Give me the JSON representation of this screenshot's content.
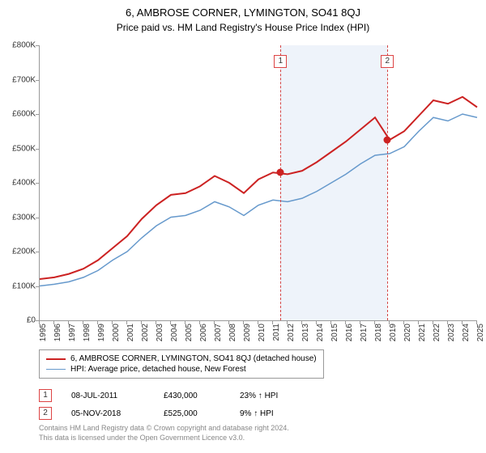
{
  "title": "6, AMBROSE CORNER, LYMINGTON, SO41 8QJ",
  "subtitle": "Price paid vs. HM Land Registry's House Price Index (HPI)",
  "chart": {
    "type": "line",
    "xlim": [
      1995,
      2025
    ],
    "ylim": [
      0,
      800000
    ],
    "ytick_step": 100000,
    "y_labels": [
      "£0",
      "£100K",
      "£200K",
      "£300K",
      "£400K",
      "£500K",
      "£600K",
      "£700K",
      "£800K"
    ],
    "x_ticks": [
      1995,
      1996,
      1997,
      1998,
      1999,
      2000,
      2001,
      2002,
      2003,
      2004,
      2005,
      2006,
      2007,
      2008,
      2009,
      2010,
      2011,
      2012,
      2013,
      2014,
      2015,
      2016,
      2017,
      2018,
      2019,
      2020,
      2021,
      2022,
      2023,
      2024,
      2025
    ],
    "background_color": "#ffffff",
    "series": [
      {
        "name": "6, AMBROSE CORNER, LYMINGTON, SO41 8QJ (detached house)",
        "color": "#cc2222",
        "line_width": 2,
        "years": [
          1995,
          1996,
          1997,
          1998,
          1999,
          2000,
          2001,
          2002,
          2003,
          2004,
          2005,
          2006,
          2007,
          2008,
          2009,
          2010,
          2011,
          2012,
          2013,
          2014,
          2015,
          2016,
          2017,
          2018,
          2019,
          2020,
          2021,
          2022,
          2023,
          2024,
          2025
        ],
        "values": [
          120000,
          125000,
          135000,
          150000,
          175000,
          210000,
          245000,
          295000,
          335000,
          365000,
          370000,
          390000,
          420000,
          400000,
          370000,
          410000,
          430000,
          425000,
          435000,
          460000,
          490000,
          520000,
          555000,
          590000,
          525000,
          550000,
          595000,
          640000,
          630000,
          650000,
          620000
        ]
      },
      {
        "name": "HPI: Average price, detached house, New Forest",
        "color": "#6699cc",
        "line_width": 1.5,
        "years": [
          1995,
          1996,
          1997,
          1998,
          1999,
          2000,
          2001,
          2002,
          2003,
          2004,
          2005,
          2006,
          2007,
          2008,
          2009,
          2010,
          2011,
          2012,
          2013,
          2014,
          2015,
          2016,
          2017,
          2018,
          2019,
          2020,
          2021,
          2022,
          2023,
          2024,
          2025
        ],
        "values": [
          100000,
          105000,
          112000,
          125000,
          145000,
          175000,
          200000,
          240000,
          275000,
          300000,
          305000,
          320000,
          345000,
          330000,
          305000,
          335000,
          350000,
          345000,
          355000,
          375000,
          400000,
          425000,
          455000,
          480000,
          485000,
          505000,
          550000,
          590000,
          580000,
          600000,
          590000
        ]
      }
    ],
    "shaded_region": {
      "start": 2011.52,
      "end": 2018.85,
      "color": "#eef3fa"
    },
    "vlines": [
      {
        "x": 2011.52,
        "label": "1",
        "color": "#d44444"
      },
      {
        "x": 2018.85,
        "label": "2",
        "color": "#d44444"
      }
    ],
    "sale_points": [
      {
        "x": 2011.52,
        "y": 430000,
        "color": "#cc2222"
      },
      {
        "x": 2018.85,
        "y": 525000,
        "color": "#cc2222"
      }
    ]
  },
  "legend": {
    "items": [
      {
        "label": "6, AMBROSE CORNER, LYMINGTON, SO41 8QJ (detached house)",
        "color": "#cc2222",
        "width": 2
      },
      {
        "label": "HPI: Average price, detached house, New Forest",
        "color": "#6699cc",
        "width": 1.5
      }
    ]
  },
  "sales": [
    {
      "marker": "1",
      "date": "08-JUL-2011",
      "price": "£430,000",
      "delta": "23% ↑ HPI"
    },
    {
      "marker": "2",
      "date": "05-NOV-2018",
      "price": "£525,000",
      "delta": "9% ↑ HPI"
    }
  ],
  "footnote": {
    "line1": "Contains HM Land Registry data © Crown copyright and database right 2024.",
    "line2": "This data is licensed under the Open Government Licence v3.0."
  }
}
